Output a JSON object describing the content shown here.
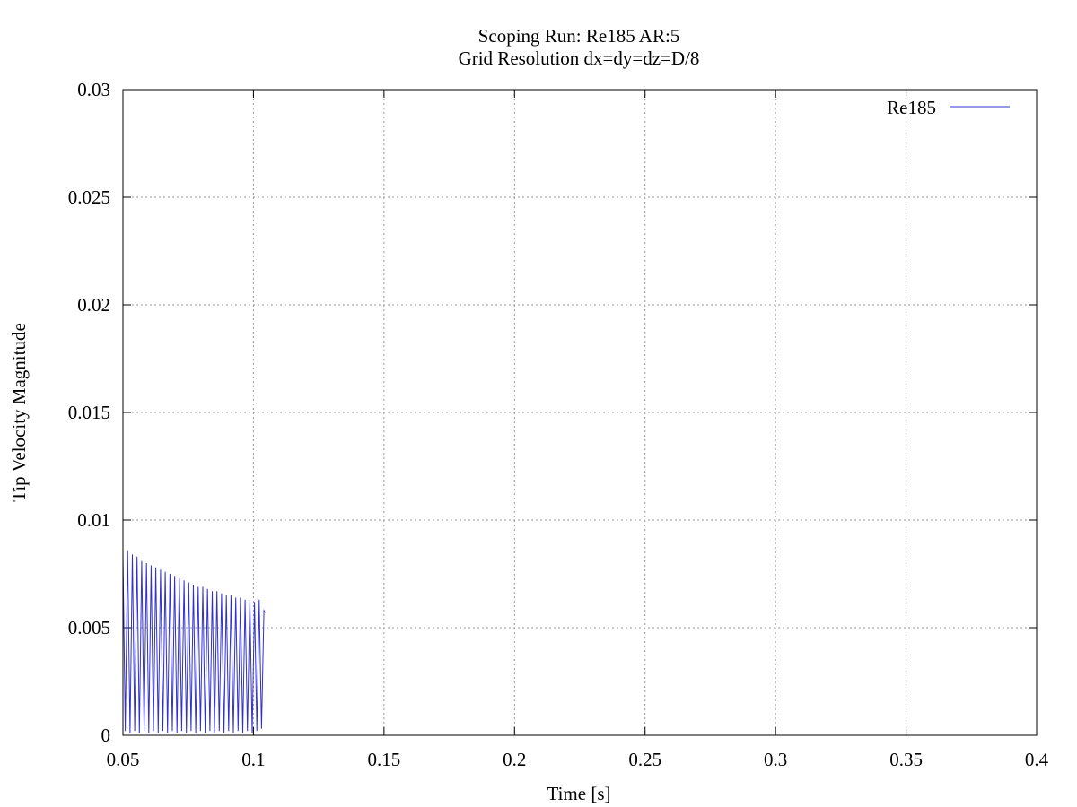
{
  "chart_data": {
    "type": "line",
    "title": "Scoping Run: Re185  AR:5",
    "subtitle": "Grid Resolution dx=dy=dz=D/8",
    "xlabel": "Time [s]",
    "ylabel": "Tip Velocity Magnitude",
    "xlim": [
      0.05,
      0.4
    ],
    "ylim": [
      0,
      0.03
    ],
    "x_ticks": [
      "0.05",
      "0.1",
      "0.15",
      "0.2",
      "0.25",
      "0.3",
      "0.35",
      "0.4"
    ],
    "y_ticks": [
      "0",
      "0.005",
      "0.01",
      "0.015",
      "0.02",
      "0.025",
      "0.03"
    ],
    "grid": true,
    "legend_position": "top-right",
    "series_color": "#3030d0",
    "series": [
      {
        "name": "Re185",
        "color": "#3030d0",
        "x": [
          0.05,
          0.0509,
          0.0518,
          0.0527,
          0.0536,
          0.0545,
          0.0554,
          0.0563,
          0.0572,
          0.0581,
          0.059,
          0.0599,
          0.0608,
          0.0617,
          0.0626,
          0.0635,
          0.0644,
          0.0653,
          0.0662,
          0.0671,
          0.068,
          0.0689,
          0.0698,
          0.0707,
          0.0716,
          0.0725,
          0.0734,
          0.0743,
          0.0752,
          0.0761,
          0.077,
          0.0779,
          0.0788,
          0.0797,
          0.0806,
          0.0815,
          0.0824,
          0.0833,
          0.0842,
          0.0851,
          0.086,
          0.0869,
          0.0878,
          0.0887,
          0.0896,
          0.0905,
          0.0914,
          0.0923,
          0.0932,
          0.0941,
          0.095,
          0.0959,
          0.0968,
          0.0977,
          0.0986,
          0.0995,
          0.1004,
          0.1013,
          0.1022,
          0.1031,
          0.104,
          0.1045
        ],
        "y": [
          0.0084,
          0.0002,
          0.0086,
          0.0001,
          0.0084,
          0.0002,
          0.0083,
          0.0001,
          0.0081,
          0.0002,
          0.008,
          0.0001,
          0.0079,
          0.0002,
          0.0078,
          0.0001,
          0.0077,
          0.0002,
          0.0076,
          0.0001,
          0.0075,
          0.0002,
          0.0074,
          0.0001,
          0.0073,
          0.0002,
          0.0072,
          0.0001,
          0.0071,
          0.0002,
          0.007,
          0.0001,
          0.0069,
          0.0002,
          0.0069,
          0.0001,
          0.0068,
          0.0002,
          0.0067,
          0.0001,
          0.0067,
          0.0002,
          0.0066,
          0.0001,
          0.0065,
          0.0002,
          0.0065,
          0.0001,
          0.0064,
          0.0002,
          0.0064,
          0.0001,
          0.0063,
          0.0002,
          0.0063,
          0.0001,
          0.0062,
          0.0002,
          0.0063,
          0.0003,
          0.0058,
          0.0057
        ]
      }
    ]
  }
}
